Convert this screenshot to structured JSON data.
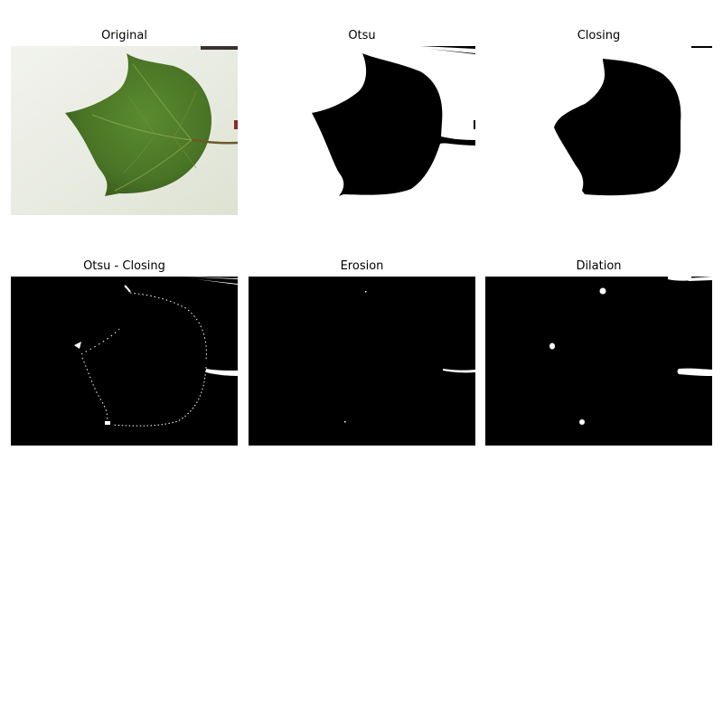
{
  "panels": [
    {
      "title": "Original",
      "image": "leaf-photo"
    },
    {
      "title": "Otsu",
      "image": "otsu-mask"
    },
    {
      "title": "Closing",
      "image": "closing-mask"
    },
    {
      "title": "Otsu - Closing",
      "image": "difference-mask"
    },
    {
      "title": "Erosion",
      "image": "erosion-mask"
    },
    {
      "title": "Dilation",
      "image": "dilation-mask"
    }
  ],
  "colors": {
    "leaf": "#4f7a2a",
    "leaf_dark": "#3c5f1e",
    "background_paper": "#eceee4",
    "mask_fg": "#000000",
    "mask_bg": "#ffffff"
  }
}
